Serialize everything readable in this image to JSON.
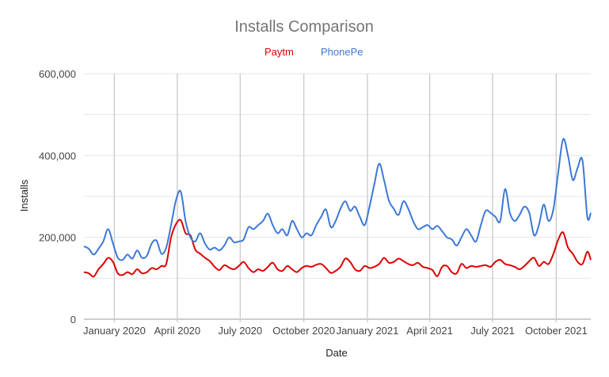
{
  "chart_data": {
    "type": "line",
    "title": "Installs Comparison",
    "xlabel": "Date",
    "ylabel": "Installs",
    "ylim": [
      0,
      600000
    ],
    "y_ticks": [
      "0",
      "200,000",
      "400,000",
      "600,000"
    ],
    "y_tick_values": [
      0,
      200000,
      400000,
      600000
    ],
    "x_ticks": [
      "January 2020",
      "April 2020",
      "July 2020",
      "October 2020",
      "January 2021",
      "April 2021",
      "July 2021",
      "October 2021"
    ],
    "x_tick_dates": [
      "2020-01-01",
      "2020-04-01",
      "2020-07-01",
      "2020-10-01",
      "2021-01-01",
      "2021-04-01",
      "2021-07-01",
      "2021-10-01"
    ],
    "xlim": [
      "2019-11-18",
      "2021-11-20"
    ],
    "grid": true,
    "legend_position": "top",
    "series": [
      {
        "name": "Paytm",
        "color": "#dd0000",
        "x": [
          "2019-11-18",
          "2019-11-25",
          "2019-12-02",
          "2019-12-09",
          "2019-12-16",
          "2019-12-23",
          "2019-12-30",
          "2020-01-06",
          "2020-01-13",
          "2020-01-20",
          "2020-01-27",
          "2020-02-03",
          "2020-02-10",
          "2020-02-17",
          "2020-02-24",
          "2020-03-02",
          "2020-03-09",
          "2020-03-16",
          "2020-03-23",
          "2020-03-30",
          "2020-04-06",
          "2020-04-13",
          "2020-04-20",
          "2020-04-27",
          "2020-05-04",
          "2020-05-11",
          "2020-05-18",
          "2020-05-25",
          "2020-06-01",
          "2020-06-08",
          "2020-06-15",
          "2020-06-22",
          "2020-06-29",
          "2020-07-06",
          "2020-07-13",
          "2020-07-20",
          "2020-07-27",
          "2020-08-03",
          "2020-08-10",
          "2020-08-17",
          "2020-08-24",
          "2020-08-31",
          "2020-09-07",
          "2020-09-14",
          "2020-09-21",
          "2020-09-28",
          "2020-10-05",
          "2020-10-12",
          "2020-10-19",
          "2020-10-26",
          "2020-11-02",
          "2020-11-09",
          "2020-11-16",
          "2020-11-23",
          "2020-11-30",
          "2020-12-07",
          "2020-12-14",
          "2020-12-21",
          "2020-12-28",
          "2021-01-04",
          "2021-01-11",
          "2021-01-18",
          "2021-01-25",
          "2021-02-01",
          "2021-02-08",
          "2021-02-15",
          "2021-02-22",
          "2021-03-01",
          "2021-03-08",
          "2021-03-15",
          "2021-03-22",
          "2021-03-29",
          "2021-04-05",
          "2021-04-12",
          "2021-04-19",
          "2021-04-26",
          "2021-05-03",
          "2021-05-10",
          "2021-05-17",
          "2021-05-24",
          "2021-05-31",
          "2021-06-07",
          "2021-06-14",
          "2021-06-21",
          "2021-06-28",
          "2021-07-05",
          "2021-07-12",
          "2021-07-19",
          "2021-07-26",
          "2021-08-02",
          "2021-08-09",
          "2021-08-16",
          "2021-08-23",
          "2021-08-30",
          "2021-09-06",
          "2021-09-13",
          "2021-09-20",
          "2021-09-27",
          "2021-10-04",
          "2021-10-11",
          "2021-10-18",
          "2021-10-25",
          "2021-11-01",
          "2021-11-08",
          "2021-11-15",
          "2021-11-20"
        ],
        "values": [
          115000,
          112000,
          104000,
          122000,
          135000,
          150000,
          140000,
          112000,
          108000,
          115000,
          110000,
          122000,
          112000,
          115000,
          125000,
          122000,
          130000,
          135000,
          200000,
          232000,
          242000,
          210000,
          205000,
          170000,
          160000,
          150000,
          142000,
          128000,
          120000,
          132000,
          126000,
          122000,
          130000,
          140000,
          125000,
          115000,
          122000,
          118000,
          128000,
          138000,
          122000,
          118000,
          130000,
          122000,
          115000,
          125000,
          130000,
          128000,
          133000,
          135000,
          125000,
          113000,
          118000,
          128000,
          148000,
          140000,
          122000,
          118000,
          130000,
          125000,
          128000,
          135000,
          150000,
          138000,
          140000,
          148000,
          142000,
          135000,
          132000,
          138000,
          128000,
          125000,
          120000,
          105000,
          128000,
          130000,
          115000,
          112000,
          135000,
          125000,
          130000,
          128000,
          130000,
          132000,
          128000,
          140000,
          145000,
          135000,
          132000,
          128000,
          122000,
          130000,
          142000,
          150000,
          130000,
          140000,
          135000,
          160000,
          195000,
          212000,
          175000,
          160000,
          140000,
          135000,
          165000,
          145000
        ]
      },
      {
        "name": "PhonePe",
        "color": "#3c78d8",
        "x": [
          "2019-11-18",
          "2019-11-25",
          "2019-12-02",
          "2019-12-09",
          "2019-12-16",
          "2019-12-23",
          "2019-12-30",
          "2020-01-06",
          "2020-01-13",
          "2020-01-20",
          "2020-01-27",
          "2020-02-03",
          "2020-02-10",
          "2020-02-17",
          "2020-02-24",
          "2020-03-02",
          "2020-03-09",
          "2020-03-16",
          "2020-03-23",
          "2020-03-30",
          "2020-04-06",
          "2020-04-13",
          "2020-04-20",
          "2020-04-27",
          "2020-05-04",
          "2020-05-11",
          "2020-05-18",
          "2020-05-25",
          "2020-06-01",
          "2020-06-08",
          "2020-06-15",
          "2020-06-22",
          "2020-06-29",
          "2020-07-06",
          "2020-07-13",
          "2020-07-20",
          "2020-07-27",
          "2020-08-03",
          "2020-08-10",
          "2020-08-17",
          "2020-08-24",
          "2020-08-31",
          "2020-09-07",
          "2020-09-14",
          "2020-09-21",
          "2020-09-28",
          "2020-10-05",
          "2020-10-12",
          "2020-10-19",
          "2020-10-26",
          "2020-11-02",
          "2020-11-09",
          "2020-11-16",
          "2020-11-23",
          "2020-11-30",
          "2020-12-07",
          "2020-12-14",
          "2020-12-21",
          "2020-12-28",
          "2021-01-04",
          "2021-01-11",
          "2021-01-18",
          "2021-01-25",
          "2021-02-01",
          "2021-02-08",
          "2021-02-15",
          "2021-02-22",
          "2021-03-01",
          "2021-03-08",
          "2021-03-15",
          "2021-03-22",
          "2021-03-29",
          "2021-04-05",
          "2021-04-12",
          "2021-04-19",
          "2021-04-26",
          "2021-05-03",
          "2021-05-10",
          "2021-05-17",
          "2021-05-24",
          "2021-05-31",
          "2021-06-07",
          "2021-06-14",
          "2021-06-21",
          "2021-06-28",
          "2021-07-05",
          "2021-07-12",
          "2021-07-19",
          "2021-07-26",
          "2021-08-02",
          "2021-08-09",
          "2021-08-16",
          "2021-08-23",
          "2021-08-30",
          "2021-09-06",
          "2021-09-13",
          "2021-09-20",
          "2021-09-27",
          "2021-10-04",
          "2021-10-11",
          "2021-10-18",
          "2021-10-25",
          "2021-11-01",
          "2021-11-08",
          "2021-11-15",
          "2021-11-20"
        ],
        "values": [
          178000,
          172000,
          158000,
          172000,
          190000,
          220000,
          185000,
          150000,
          145000,
          158000,
          148000,
          168000,
          150000,
          155000,
          185000,
          192000,
          160000,
          175000,
          230000,
          290000,
          312000,
          240000,
          200000,
          190000,
          210000,
          185000,
          170000,
          175000,
          168000,
          180000,
          200000,
          188000,
          190000,
          195000,
          225000,
          220000,
          230000,
          240000,
          258000,
          230000,
          210000,
          220000,
          205000,
          240000,
          220000,
          200000,
          210000,
          205000,
          230000,
          250000,
          268000,
          225000,
          240000,
          270000,
          288000,
          265000,
          275000,
          250000,
          230000,
          275000,
          330000,
          380000,
          340000,
          290000,
          270000,
          255000,
          288000,
          270000,
          240000,
          220000,
          225000,
          230000,
          220000,
          228000,
          215000,
          200000,
          195000,
          180000,
          200000,
          220000,
          205000,
          190000,
          230000,
          265000,
          260000,
          250000,
          240000,
          318000,
          260000,
          240000,
          255000,
          275000,
          260000,
          205000,
          230000,
          280000,
          240000,
          270000,
          360000,
          440000,
          400000,
          340000,
          370000,
          388000,
          250000,
          260000
        ]
      }
    ]
  }
}
